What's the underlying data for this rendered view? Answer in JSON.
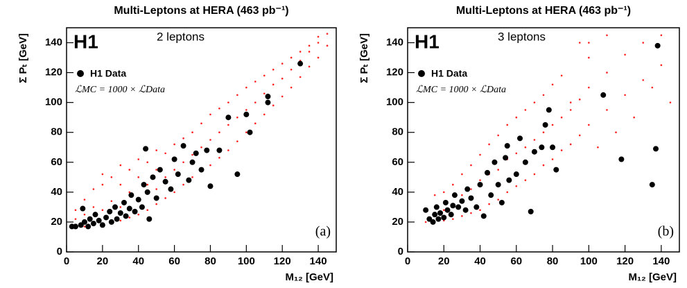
{
  "chart_data": [
    {
      "type": "scatter",
      "title": "Multi-Leptons at HERA (463 pb⁻¹)",
      "x_label": "M₁₂ [GeV]",
      "y_label": "Σ Pₜ [GeV]",
      "experiment": "H1",
      "subtitle": "2 leptons",
      "lumi_label": "ℒMC = 1000 × ℒData",
      "panel_label": "(a)",
      "xlim": [
        0,
        150
      ],
      "ylim": [
        0,
        150
      ],
      "xticks": [
        0,
        20,
        40,
        60,
        80,
        100,
        120,
        140
      ],
      "yticks": [
        0,
        20,
        40,
        60,
        80,
        100,
        120,
        140
      ],
      "series": [
        {
          "color": "#ff2020",
          "x": [
            5,
            5,
            5,
            10,
            10,
            10,
            15,
            15,
            15,
            20,
            20,
            20,
            20,
            25,
            25,
            25,
            30,
            30,
            30,
            30,
            35,
            35,
            35,
            40,
            40,
            40,
            40,
            45,
            45,
            45,
            50,
            50,
            50,
            50,
            55,
            55,
            55,
            60,
            60,
            60,
            65,
            65,
            65,
            70,
            70,
            70,
            75,
            75,
            75,
            80,
            80,
            80,
            85,
            85,
            85,
            90,
            90,
            90,
            95,
            95,
            95,
            100,
            100,
            100,
            105,
            105,
            105,
            110,
            110,
            110,
            115,
            115,
            115,
            120,
            120,
            120,
            125,
            125,
            125,
            130,
            130,
            130,
            135,
            135,
            135,
            140,
            140,
            140,
            145,
            145
          ],
          "values": [
            17,
            22,
            28,
            17,
            25,
            35,
            18,
            30,
            42,
            19,
            28,
            45,
            52,
            20,
            34,
            50,
            21,
            30,
            45,
            58,
            23,
            40,
            55,
            25,
            35,
            50,
            62,
            28,
            45,
            60,
            32,
            42,
            55,
            68,
            36,
            50,
            66,
            40,
            55,
            72,
            45,
            60,
            76,
            50,
            65,
            80,
            54,
            70,
            86,
            58,
            75,
            92,
            63,
            80,
            96,
            68,
            85,
            100,
            74,
            90,
            105,
            80,
            95,
            110,
            86,
            100,
            114,
            92,
            106,
            118,
            98,
            112,
            122,
            104,
            116,
            126,
            110,
            122,
            130,
            117,
            128,
            134,
            124,
            134,
            138,
            130,
            140,
            144,
            138,
            146
          ]
        },
        {
          "name": "H1 Data",
          "color": "#000000",
          "x": [
            5,
            8,
            10,
            12,
            13,
            15,
            16,
            18,
            20,
            22,
            24,
            25,
            27,
            28,
            30,
            32,
            33,
            35,
            36,
            38,
            40,
            42,
            43,
            45,
            46,
            48,
            50,
            52,
            55,
            58,
            60,
            62,
            65,
            68,
            70,
            72,
            75,
            78,
            80,
            85,
            90,
            95,
            100,
            102,
            112,
            112,
            130,
            44,
            9,
            3
          ],
          "values": [
            17,
            18,
            20,
            17,
            22,
            19,
            25,
            21,
            18,
            23,
            27,
            20,
            30,
            22,
            26,
            33,
            24,
            29,
            38,
            27,
            35,
            30,
            45,
            40,
            22,
            50,
            36,
            55,
            47,
            42,
            62,
            52,
            71,
            48,
            60,
            66,
            55,
            68,
            44,
            68,
            90,
            52,
            92,
            80,
            100,
            104,
            126,
            69,
            29,
            17
          ]
        }
      ]
    },
    {
      "type": "scatter",
      "title": "Multi-Leptons at HERA (463 pb⁻¹)",
      "x_label": "M₁₂ [GeV]",
      "y_label": "Σ Pₜ [GeV]",
      "experiment": "H1",
      "subtitle": "3 leptons",
      "lumi_label": "ℒMC = 1000 × ℒData",
      "panel_label": "(b)",
      "xlim": [
        0,
        150
      ],
      "ylim": [
        0,
        150
      ],
      "xticks": [
        0,
        20,
        40,
        60,
        80,
        100,
        120,
        140
      ],
      "yticks": [
        0,
        20,
        40,
        60,
        80,
        100,
        120,
        140
      ],
      "series": [
        {
          "color": "#ff2020",
          "x": [
            10,
            10,
            15,
            15,
            15,
            20,
            20,
            20,
            25,
            25,
            25,
            30,
            30,
            30,
            35,
            35,
            35,
            40,
            40,
            40,
            45,
            45,
            45,
            50,
            50,
            50,
            55,
            55,
            55,
            60,
            60,
            60,
            65,
            65,
            65,
            70,
            70,
            70,
            75,
            75,
            75,
            80,
            80,
            80,
            85,
            85,
            85,
            90,
            90,
            90,
            95,
            95,
            95,
            100,
            100,
            100,
            110,
            110,
            110,
            120,
            120,
            130,
            130,
            140,
            140,
            105,
            125,
            135,
            115,
            145,
            100
          ],
          "values": [
            20,
            28,
            20,
            30,
            38,
            21,
            28,
            40,
            22,
            32,
            45,
            24,
            38,
            52,
            26,
            42,
            58,
            28,
            48,
            65,
            32,
            52,
            72,
            35,
            55,
            78,
            40,
            62,
            85,
            44,
            66,
            90,
            48,
            70,
            95,
            52,
            75,
            100,
            58,
            80,
            105,
            62,
            85,
            112,
            68,
            90,
            118,
            72,
            95,
            100,
            78,
            102,
            140,
            85,
            110,
            130,
            95,
            120,
            145,
            105,
            132,
            115,
            140,
            125,
            145,
            70,
            90,
            110,
            80,
            100,
            140
          ]
        },
        {
          "name": "H1 Data",
          "color": "#000000",
          "x": [
            10,
            12,
            14,
            15,
            16,
            17,
            18,
            20,
            21,
            22,
            24,
            25,
            26,
            28,
            30,
            32,
            33,
            35,
            38,
            40,
            42,
            44,
            46,
            48,
            50,
            52,
            54,
            55,
            56,
            60,
            62,
            65,
            68,
            70,
            74,
            76,
            78,
            80,
            82,
            108,
            118,
            135,
            137,
            138
          ],
          "values": [
            28,
            22,
            20,
            25,
            30,
            22,
            26,
            23,
            33,
            28,
            25,
            31,
            38,
            30,
            34,
            28,
            42,
            36,
            30,
            45,
            24,
            53,
            38,
            60,
            45,
            33,
            63,
            71,
            48,
            52,
            76,
            60,
            27,
            67,
            70,
            85,
            95,
            70,
            55,
            105,
            62,
            45,
            69,
            138
          ]
        }
      ]
    }
  ]
}
